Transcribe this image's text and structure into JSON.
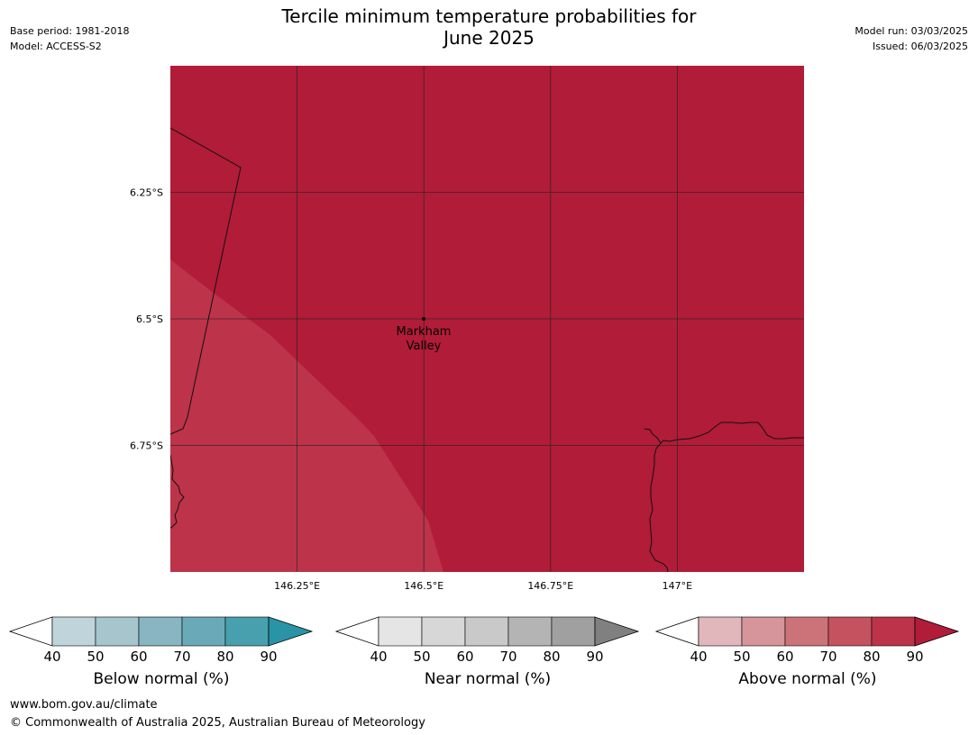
{
  "title_line1": "Tercile minimum temperature probabilities for",
  "title_line2": "June 2025",
  "base_period": "Base period: 1981-2018",
  "model": "Model: ACCESS-S2",
  "model_run": "Model run: 03/03/2025",
  "issued": "Issued: 06/03/2025",
  "map": {
    "lon_range": [
      146.0,
      147.25
    ],
    "lat_range": [
      -6.0,
      -7.0
    ],
    "lon_ticks": [
      {
        "value": 146.25,
        "label": "146.25°E"
      },
      {
        "value": 146.5,
        "label": "146.5°E"
      },
      {
        "value": 146.75,
        "label": "146.75°E"
      },
      {
        "value": 147.0,
        "label": "147°E"
      }
    ],
    "lat_ticks": [
      {
        "value": -6.25,
        "label": "6.25°S"
      },
      {
        "value": -6.5,
        "label": "6.5°S"
      },
      {
        "value": -6.75,
        "label": "6.75°S"
      }
    ],
    "grid": true,
    "place": {
      "name_line1": "Markham",
      "name_line2": "Valley",
      "lon": 146.5,
      "lat": -6.5
    },
    "fill_colors": {
      "above_80_90": "#b11c38",
      "above_70_80": "#bc334a"
    }
  },
  "legends": [
    {
      "title": "Below normal (%)",
      "ticks": [
        "40",
        "50",
        "60",
        "70",
        "80",
        "90"
      ],
      "colors": [
        "#bfd4db",
        "#a6c5cc",
        "#88b5c1",
        "#6aaab8",
        "#48a0ae",
        "#2a93a6"
      ]
    },
    {
      "title": "Near normal (%)",
      "ticks": [
        "40",
        "50",
        "60",
        "70",
        "80",
        "90"
      ],
      "colors": [
        "#e5e5e5",
        "#d7d7d7",
        "#c9c9c9",
        "#b4b4b4",
        "#a0a0a0",
        "#808080"
      ]
    },
    {
      "title": "Above normal (%)",
      "ticks": [
        "40",
        "50",
        "60",
        "70",
        "80",
        "90"
      ],
      "colors": [
        "#e2b7bc",
        "#d5959b",
        "#cc7379",
        "#c4535f",
        "#bc334a",
        "#b11c38"
      ]
    }
  ],
  "footer_url": "www.bom.gov.au/climate",
  "footer_copyright": "© Commonwealth of Australia 2025, Australian Bureau of Meteorology"
}
